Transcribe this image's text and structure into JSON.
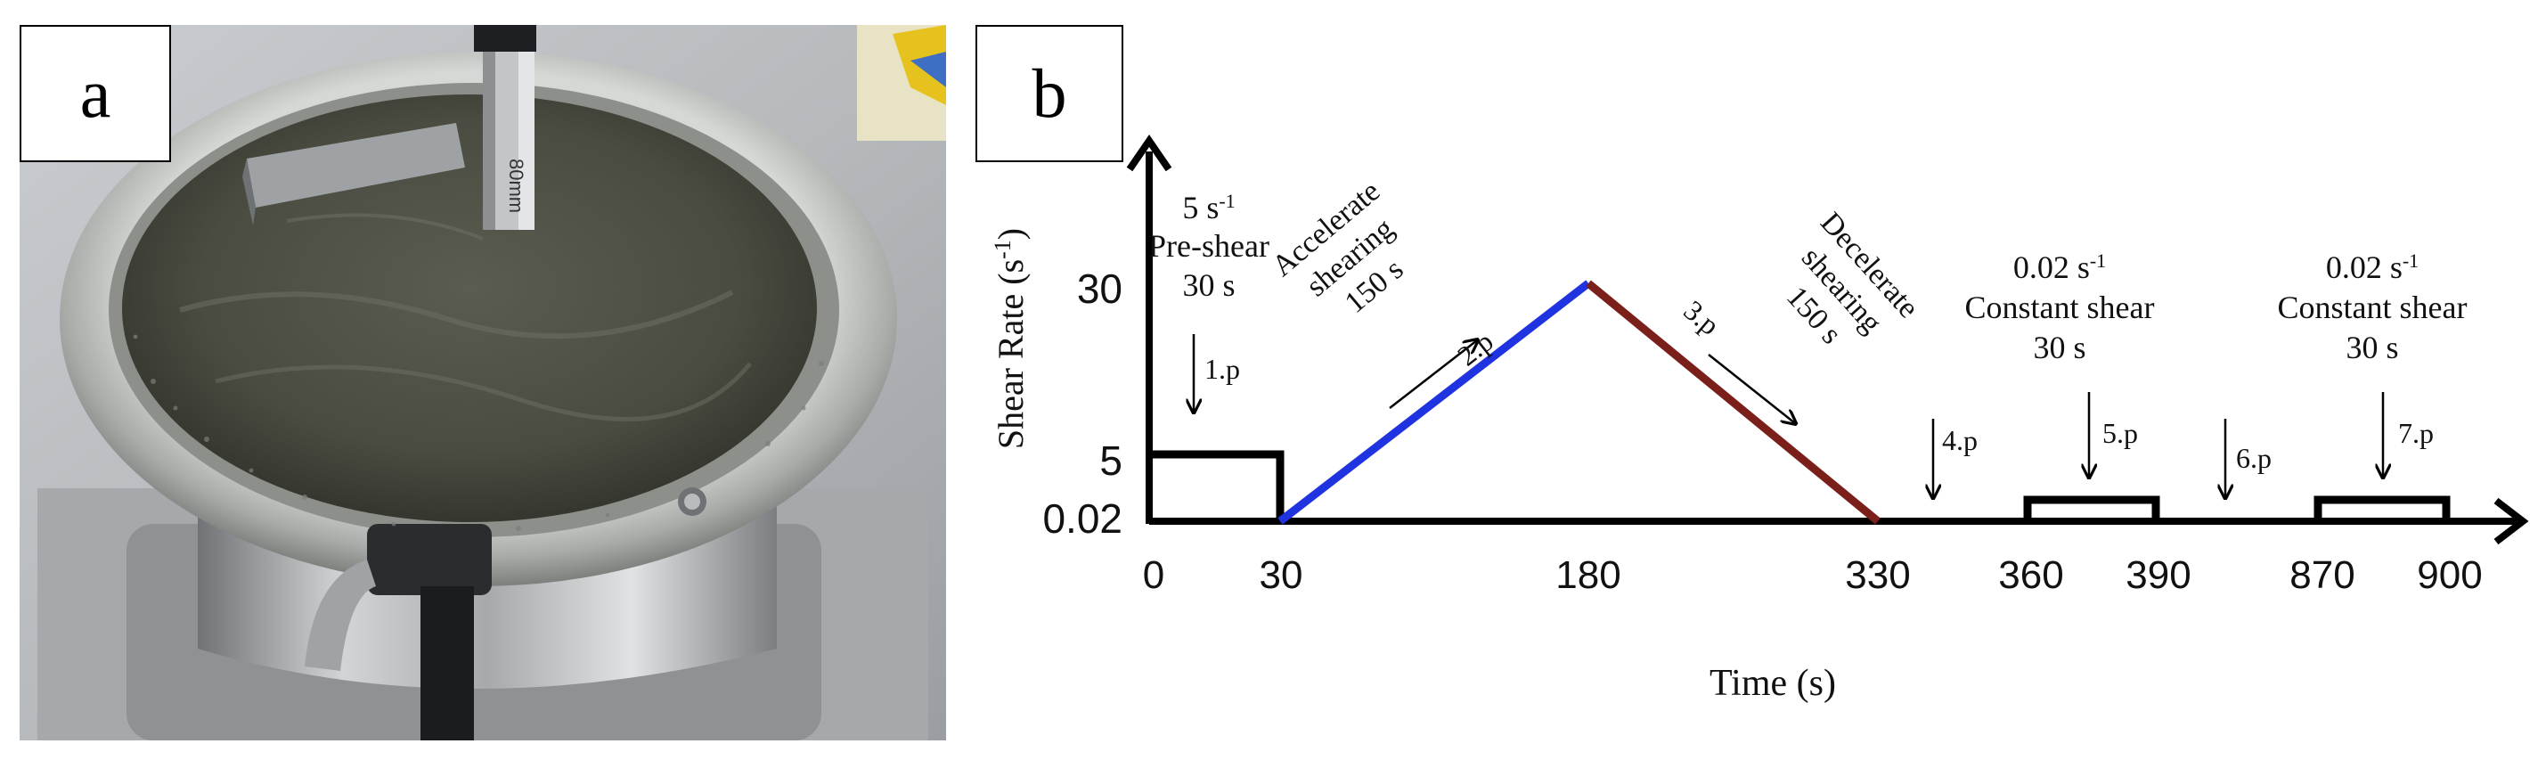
{
  "panels": {
    "a": {
      "label": "a"
    },
    "b": {
      "label": "b"
    }
  },
  "photo": {
    "subject": "rheometer vane in cement paste cup",
    "spindle_text": "80mm"
  },
  "diagram": {
    "y_axis_title": "Shear Rate (s-1)",
    "x_axis_title": "Time (s)",
    "y_ticks": [
      "30",
      "5",
      "0.02"
    ],
    "x_ticks": [
      "0",
      "30",
      "180",
      "330",
      "360",
      "390",
      "870",
      "900"
    ],
    "annotations": {
      "preshear": {
        "rate": "5 s-1",
        "name": "Pre-shear",
        "duration": "30 s",
        "point": "1.p"
      },
      "accelerate": {
        "line1": "Accelerate",
        "line2": "shearing",
        "duration": "150 s",
        "point": "2.p"
      },
      "decelerate": {
        "line1": "Decelerate",
        "line2": "shearing",
        "duration": "150 s",
        "point": "3.p"
      },
      "point4": "4.p",
      "constant1": {
        "rate": "0.02 s-1",
        "name": "Constant shear",
        "duration": "30 s",
        "point": "5.p"
      },
      "point6": "6.p",
      "constant2": {
        "rate": "0.02 s-1",
        "name": "Constant shear",
        "duration": "30 s",
        "point": "7.p"
      }
    },
    "colors": {
      "axis": "#000000",
      "preshear_step": "#000000",
      "accelerate_ramp": "#1f33e0",
      "decelerate_ramp": "#7a1f1a",
      "constant_step": "#000000"
    }
  }
}
